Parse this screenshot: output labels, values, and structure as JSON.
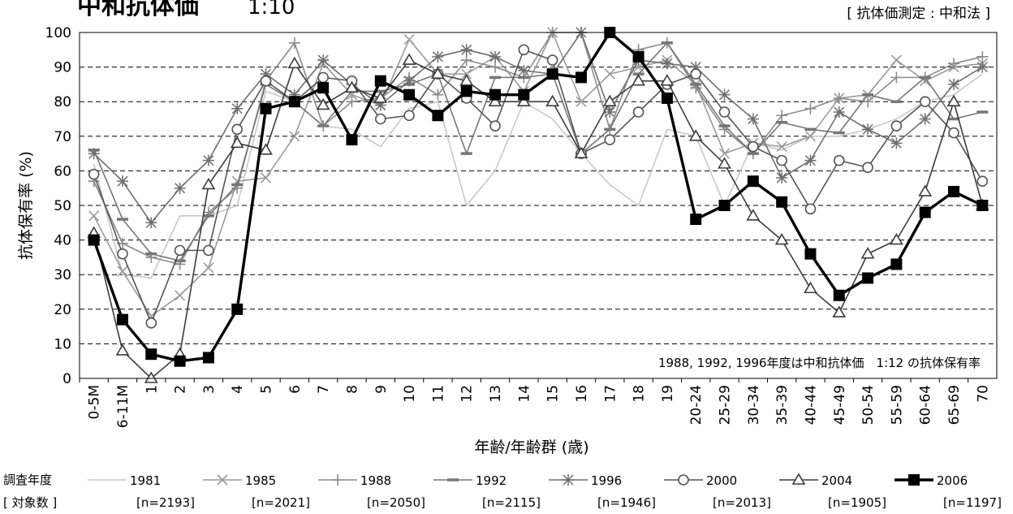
{
  "chart_data": {
    "type": "line",
    "title": "中和抗体価",
    "subtitle": "1:10",
    "method_note": "[ 抗体価測定 : 中和法 ]",
    "xlabel": "年齢/年齢群 (歳)",
    "ylabel": "抗体保有率 (%)",
    "ylim": [
      0,
      100
    ],
    "yticks": [
      "0",
      "10",
      "20",
      "30",
      "40",
      "50",
      "60",
      "70",
      "80",
      "90",
      "100"
    ],
    "grid": "horizontal dashed",
    "categories": [
      "0-5M",
      "6-11M",
      "1",
      "2",
      "3",
      "4",
      "5",
      "6",
      "7",
      "8",
      "9",
      "10",
      "11",
      "12",
      "13",
      "14",
      "15",
      "16",
      "17",
      "18",
      "19",
      "20-24",
      "25-29",
      "30-34",
      "35-39",
      "40-44",
      "45-49",
      "50-54",
      "55-59",
      "60-64",
      "65-69",
      "70"
    ],
    "annotation": "1988, 1992, 1996年度は中和抗体価　1:12 の抗体保有率",
    "legend_title": "調査年度",
    "legend_subtitle": "[ 対象数 ]",
    "legend_position": "bottom",
    "series": [
      {
        "name": "1981",
        "n_label": "[n=2193]",
        "color": "#c8c8c8",
        "marker": "none",
        "width": 1.6,
        "values": [
          62,
          30,
          29,
          47,
          47,
          50,
          83,
          80,
          73,
          72,
          67,
          78,
          80,
          50,
          60,
          80,
          75,
          65,
          56,
          50,
          72,
          70,
          50,
          68,
          66,
          70,
          70,
          72,
          75,
          80,
          82,
          88
        ]
      },
      {
        "name": "1985",
        "n_label": "[n=2021]",
        "color": "#9a9a9a",
        "marker": "x",
        "width": 1.6,
        "values": [
          47,
          31,
          18,
          24,
          32,
          57,
          58,
          70,
          91,
          82,
          79,
          98,
          88,
          88,
          93,
          83,
          100,
          80,
          88,
          90,
          92,
          85,
          65,
          68,
          67,
          70,
          81,
          82,
          92,
          86,
          90,
          91
        ]
      },
      {
        "name": "1988",
        "n_label": "[n=2050]",
        "color": "#8c8c8c",
        "marker": "plus",
        "width": 1.6,
        "values": [
          57,
          39,
          35,
          33,
          48,
          55,
          86,
          97,
          73,
          80,
          81,
          87,
          82,
          92,
          90,
          87,
          100,
          100,
          72,
          95,
          97,
          84,
          72,
          65,
          76,
          78,
          81,
          80,
          87,
          87,
          91,
          93
        ]
      },
      {
        "name": "1992",
        "n_label": "[n=2115]",
        "color": "#767676",
        "marker": "dash",
        "width": 1.6,
        "values": [
          66,
          46,
          36,
          34,
          47,
          56,
          85,
          80,
          73,
          83,
          83,
          85,
          88,
          65,
          87,
          87,
          88,
          65,
          72,
          88,
          97,
          85,
          73,
          65,
          74,
          72,
          71,
          82,
          80,
          87,
          75,
          77
        ]
      },
      {
        "name": "1996",
        "n_label": "[n=1946]",
        "color": "#6e6e6e",
        "marker": "star",
        "width": 1.6,
        "values": [
          65,
          57,
          45,
          55,
          63,
          78,
          88,
          82,
          92,
          85,
          79,
          86,
          93,
          95,
          93,
          89,
          88,
          100,
          77,
          92,
          91,
          90,
          82,
          75,
          58,
          63,
          77,
          72,
          68,
          75,
          85,
          90
        ]
      },
      {
        "name": "2000",
        "n_label": "[n=2013]",
        "color": "#555555",
        "marker": "circle",
        "width": 1.6,
        "values": [
          59,
          36,
          16,
          37,
          37,
          72,
          86,
          80,
          87,
          86,
          75,
          76,
          88,
          81,
          73,
          95,
          92,
          65,
          69,
          77,
          85,
          88,
          77,
          67,
          63,
          49,
          63,
          61,
          73,
          80,
          71,
          57
        ]
      },
      {
        "name": "2004",
        "n_label": "[n=1905]",
        "color": "#3c3c3c",
        "marker": "triangle",
        "width": 1.6,
        "values": [
          42,
          8,
          0,
          7,
          56,
          68,
          66,
          91,
          79,
          84,
          81,
          92,
          88,
          86,
          80,
          80,
          80,
          65,
          80,
          86,
          86,
          70,
          62,
          47,
          40,
          26,
          19,
          36,
          40,
          54,
          80,
          50
        ]
      },
      {
        "name": "2006",
        "n_label": "[n=1197]",
        "color": "#000000",
        "marker": "square",
        "width": 3.4,
        "values": [
          40,
          17,
          7,
          5,
          6,
          20,
          78,
          80,
          84,
          69,
          86,
          82,
          76,
          83,
          82,
          82,
          88,
          87,
          100,
          93,
          81,
          46,
          50,
          57,
          51,
          36,
          24,
          29,
          33,
          48,
          54,
          50
        ]
      }
    ]
  }
}
